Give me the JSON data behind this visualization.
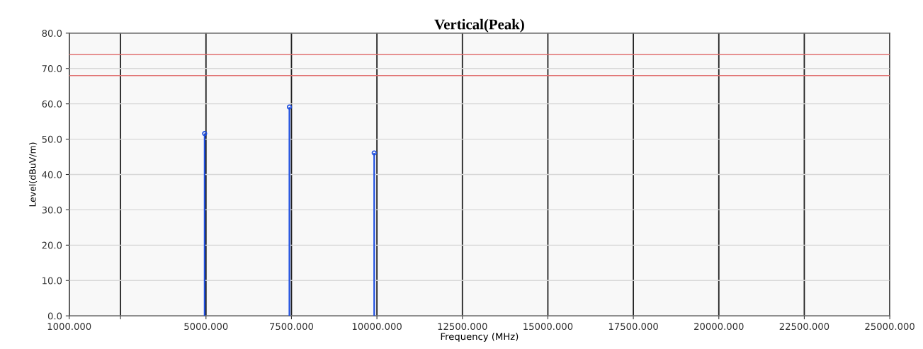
{
  "chart_data": {
    "type": "lollipop",
    "title": "Vertical(Peak)",
    "xlabel": "Frequency (MHz)",
    "ylabel": "Level(dBuV/m)",
    "x": [
      4960,
      7440,
      9920
    ],
    "series": [
      {
        "color": "#1f4fe0",
        "values": [
          51.6,
          59.1,
          46.1
        ]
      }
    ],
    "marker": "circle",
    "grid": true,
    "xlim": [
      1000,
      25000
    ],
    "ylim": [
      0,
      80
    ],
    "xticks": [
      {
        "value": 1000,
        "label": "1000.000"
      },
      {
        "value": 2500,
        "label": null
      },
      {
        "value": 5000,
        "label": "5000.000"
      },
      {
        "value": 7500,
        "label": "7500.000"
      },
      {
        "value": 10000,
        "label": "10000.000"
      },
      {
        "value": 12500,
        "label": "12500.000"
      },
      {
        "value": 15000,
        "label": "15000.000"
      },
      {
        "value": 17500,
        "label": "17500.000"
      },
      {
        "value": 20000,
        "label": "20000.000"
      },
      {
        "value": 22500,
        "label": "22500.000"
      },
      {
        "value": 25000,
        "label": "25000.000"
      }
    ],
    "yticks": [
      {
        "value": 0,
        "label": "0.0"
      },
      {
        "value": 10,
        "label": "10.0"
      },
      {
        "value": 20,
        "label": "20.0"
      },
      {
        "value": 30,
        "label": "30.0"
      },
      {
        "value": 40,
        "label": "40.0"
      },
      {
        "value": 50,
        "label": "50.0"
      },
      {
        "value": 60,
        "label": "60.0"
      },
      {
        "value": 70,
        "label": "70.0"
      },
      {
        "value": 80,
        "label": "80.0"
      }
    ],
    "ref_lines": [
      {
        "axis": "y",
        "value": 74,
        "color": "#e07070"
      },
      {
        "axis": "y",
        "value": 68,
        "color": "#e07070"
      }
    ]
  }
}
